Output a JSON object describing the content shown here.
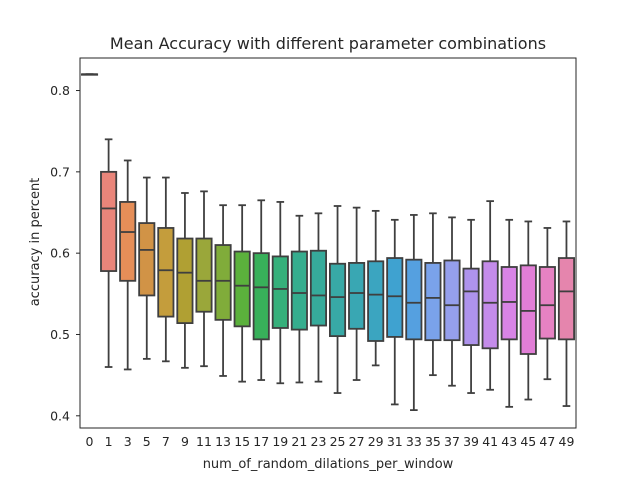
{
  "chart_data": {
    "type": "box",
    "title": "Mean Accuracy with different parameter combinations",
    "xlabel": "num_of_random_dilations_per_window",
    "ylabel": "accuracy in percent",
    "ylim": [
      0.385,
      0.84
    ],
    "yticks": [
      0.4,
      0.5,
      0.6,
      0.7,
      0.8
    ],
    "grid": false,
    "legend": "none",
    "categories": [
      "0",
      "1",
      "3",
      "5",
      "7",
      "9",
      "11",
      "13",
      "15",
      "17",
      "19",
      "21",
      "23",
      "25",
      "27",
      "29",
      "31",
      "33",
      "35",
      "37",
      "39",
      "41",
      "43",
      "45",
      "47",
      "49"
    ],
    "boxes": [
      {
        "category": "0",
        "min": 0.82,
        "q1": 0.82,
        "median": 0.82,
        "q3": 0.82,
        "max": 0.82,
        "color": "#e8e8e8"
      },
      {
        "category": "1",
        "min": 0.46,
        "q1": 0.578,
        "median": 0.655,
        "q3": 0.7,
        "max": 0.74,
        "color": "#e9857a"
      },
      {
        "category": "3",
        "min": 0.457,
        "q1": 0.566,
        "median": 0.626,
        "q3": 0.663,
        "max": 0.714,
        "color": "#e58e58"
      },
      {
        "category": "5",
        "min": 0.47,
        "q1": 0.548,
        "median": 0.604,
        "q3": 0.637,
        "max": 0.693,
        "color": "#d19346"
      },
      {
        "category": "7",
        "min": 0.467,
        "q1": 0.522,
        "median": 0.579,
        "q3": 0.631,
        "max": 0.693,
        "color": "#c49d3c"
      },
      {
        "category": "9",
        "min": 0.459,
        "q1": 0.514,
        "median": 0.576,
        "q3": 0.618,
        "max": 0.674,
        "color": "#b0a033"
      },
      {
        "category": "11",
        "min": 0.461,
        "q1": 0.528,
        "median": 0.566,
        "q3": 0.618,
        "max": 0.676,
        "color": "#9aa73a"
      },
      {
        "category": "13",
        "min": 0.449,
        "q1": 0.518,
        "median": 0.566,
        "q3": 0.61,
        "max": 0.659,
        "color": "#80ac3a"
      },
      {
        "category": "15",
        "min": 0.442,
        "q1": 0.51,
        "median": 0.56,
        "q3": 0.602,
        "max": 0.659,
        "color": "#5bb13c"
      },
      {
        "category": "17",
        "min": 0.444,
        "q1": 0.494,
        "median": 0.558,
        "q3": 0.6,
        "max": 0.665,
        "color": "#38b05a"
      },
      {
        "category": "19",
        "min": 0.44,
        "q1": 0.508,
        "median": 0.556,
        "q3": 0.596,
        "max": 0.663,
        "color": "#36b07b"
      },
      {
        "category": "21",
        "min": 0.441,
        "q1": 0.506,
        "median": 0.551,
        "q3": 0.602,
        "max": 0.646,
        "color": "#35ad8e"
      },
      {
        "category": "23",
        "min": 0.442,
        "q1": 0.511,
        "median": 0.548,
        "q3": 0.603,
        "max": 0.649,
        "color": "#36ab9b"
      },
      {
        "category": "25",
        "min": 0.428,
        "q1": 0.498,
        "median": 0.546,
        "q3": 0.587,
        "max": 0.658,
        "color": "#38a9a6"
      },
      {
        "category": "27",
        "min": 0.444,
        "q1": 0.507,
        "median": 0.551,
        "q3": 0.588,
        "max": 0.656,
        "color": "#39a7b3"
      },
      {
        "category": "29",
        "min": 0.462,
        "q1": 0.492,
        "median": 0.549,
        "q3": 0.59,
        "max": 0.652,
        "color": "#3ba5c0"
      },
      {
        "category": "31",
        "min": 0.414,
        "q1": 0.497,
        "median": 0.547,
        "q3": 0.594,
        "max": 0.641,
        "color": "#3fa2d0"
      },
      {
        "category": "33",
        "min": 0.407,
        "q1": 0.494,
        "median": 0.539,
        "q3": 0.592,
        "max": 0.647,
        "color": "#55a0e0"
      },
      {
        "category": "35",
        "min": 0.45,
        "q1": 0.493,
        "median": 0.545,
        "q3": 0.588,
        "max": 0.649,
        "color": "#7aa2ea"
      },
      {
        "category": "37",
        "min": 0.437,
        "q1": 0.493,
        "median": 0.536,
        "q3": 0.591,
        "max": 0.644,
        "color": "#959fec"
      },
      {
        "category": "39",
        "min": 0.428,
        "q1": 0.487,
        "median": 0.553,
        "q3": 0.581,
        "max": 0.641,
        "color": "#ae93ec"
      },
      {
        "category": "41",
        "min": 0.432,
        "q1": 0.483,
        "median": 0.539,
        "q3": 0.59,
        "max": 0.664,
        "color": "#c48cea"
      },
      {
        "category": "43",
        "min": 0.411,
        "q1": 0.494,
        "median": 0.54,
        "q3": 0.583,
        "max": 0.641,
        "color": "#d884e6"
      },
      {
        "category": "45",
        "min": 0.42,
        "q1": 0.476,
        "median": 0.529,
        "q3": 0.585,
        "max": 0.639,
        "color": "#e17ed6"
      },
      {
        "category": "47",
        "min": 0.445,
        "q1": 0.495,
        "median": 0.536,
        "q3": 0.583,
        "max": 0.631,
        "color": "#e682c3"
      },
      {
        "category": "49",
        "min": 0.412,
        "q1": 0.494,
        "median": 0.553,
        "q3": 0.594,
        "max": 0.639,
        "color": "#e585ad"
      }
    ]
  }
}
